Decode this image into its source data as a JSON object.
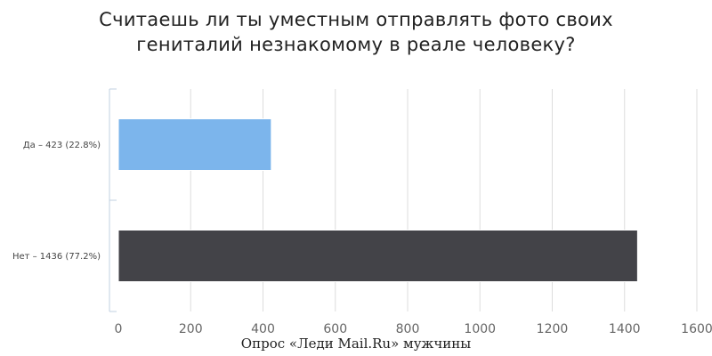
{
  "chart_data": {
    "type": "bar",
    "orientation": "horizontal",
    "title_lines": [
      "Считаешь ли ты уместным отправлять фото своих",
      "гениталий незнакомому в реале человеку?"
    ],
    "categories": [
      "Да – 423 (22.8%)",
      "Нет – 1436 (77.2%)"
    ],
    "values": [
      423,
      1436
    ],
    "bar_colors": [
      "#7cb5ec",
      "#434348"
    ],
    "xlim": [
      0,
      1600
    ],
    "xticks": [
      0,
      200,
      400,
      600,
      800,
      1000,
      1200,
      1400,
      1600
    ],
    "grid": true,
    "legend": "none",
    "caption": "Опрос «Леди Mail.Ru» мужчины"
  },
  "colors": {
    "gridline": "#dddddd",
    "axis_line": "#c0d0e0",
    "tick_label": "#666666",
    "category_label": "#444444"
  }
}
